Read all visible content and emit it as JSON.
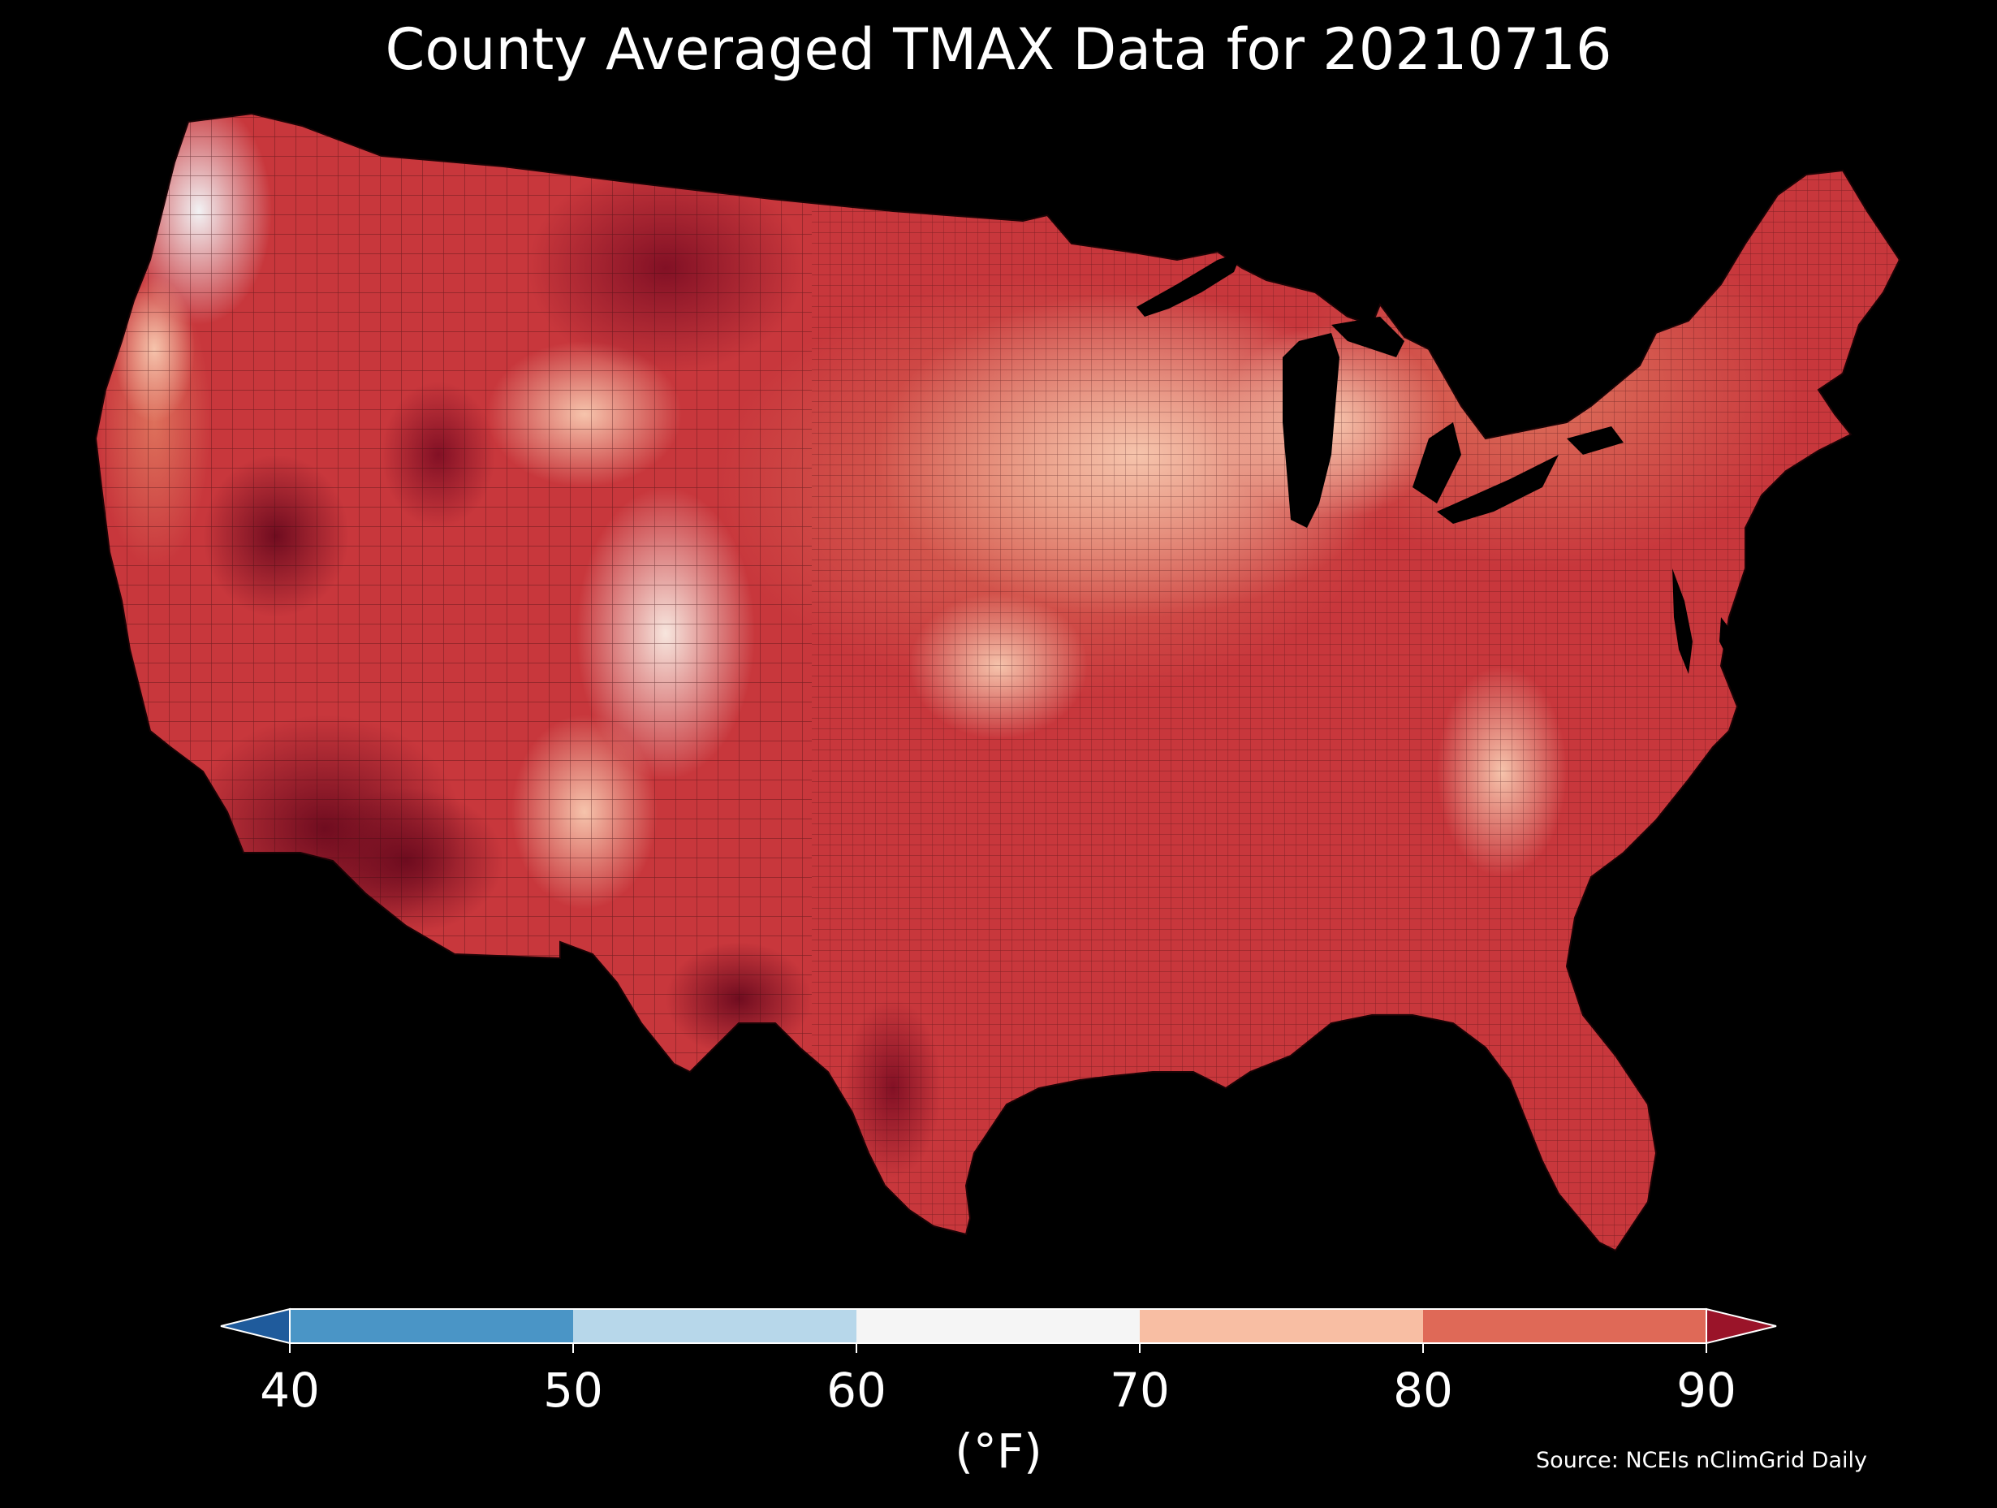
{
  "title": "County Averaged TMAX Data for 20210716",
  "colorbar": {
    "unit": "(°F)",
    "ticks": [
      "40",
      "50",
      "60",
      "70",
      "80",
      "90"
    ],
    "bins": [
      {
        "range": "<40",
        "color": "#1f5b9c"
      },
      {
        "range": "40-50",
        "color": "#4a95c6"
      },
      {
        "range": "50-60",
        "color": "#b7d7ea"
      },
      {
        "range": "60-70",
        "color": "#f5f5f5"
      },
      {
        "range": "70-80",
        "color": "#f8bea3"
      },
      {
        "range": "80-90",
        "color": "#df6957"
      },
      {
        "range": ">90",
        "color": "#9a1429"
      }
    ]
  },
  "source": "Source: NCEIs nClimGrid Daily",
  "map": {
    "region": "Contiguous United States",
    "background": "#000000",
    "land_base_color": "#c8373c",
    "lakes_color": "#000000"
  }
}
